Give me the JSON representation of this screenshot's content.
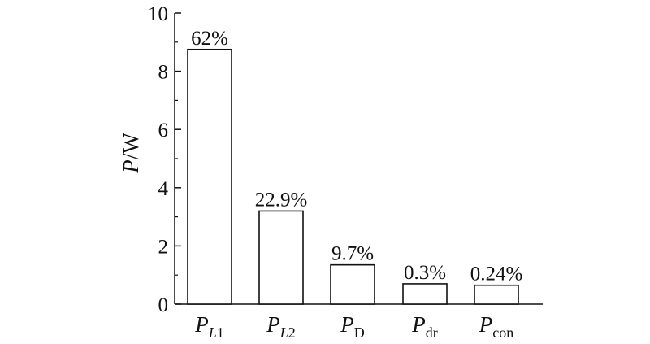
{
  "chart_data": {
    "type": "bar",
    "categories": [
      {
        "main": "P",
        "sub_italic": "L",
        "sub": "1"
      },
      {
        "main": "P",
        "sub_italic": "L",
        "sub": "2"
      },
      {
        "main": "P",
        "sub_italic": "",
        "sub": "D"
      },
      {
        "main": "P",
        "sub_italic": "",
        "sub": "dr"
      },
      {
        "main": "P",
        "sub_italic": "",
        "sub": "con"
      }
    ],
    "values": [
      8.75,
      3.2,
      1.35,
      0.7,
      0.65
    ],
    "data_labels": [
      "62%",
      "22.9%",
      "9.7%",
      "0.3%",
      "0.24%"
    ],
    "ylabel": {
      "italic": "P",
      "rest": "/W"
    },
    "xlabel": "",
    "title": "",
    "ylim": [
      0,
      10
    ],
    "yticks": [
      0,
      2,
      4,
      6,
      8,
      10
    ],
    "grid": false,
    "bar_fill": "#ffffff",
    "bar_stroke": "#111111",
    "axis_color": "#111111"
  }
}
